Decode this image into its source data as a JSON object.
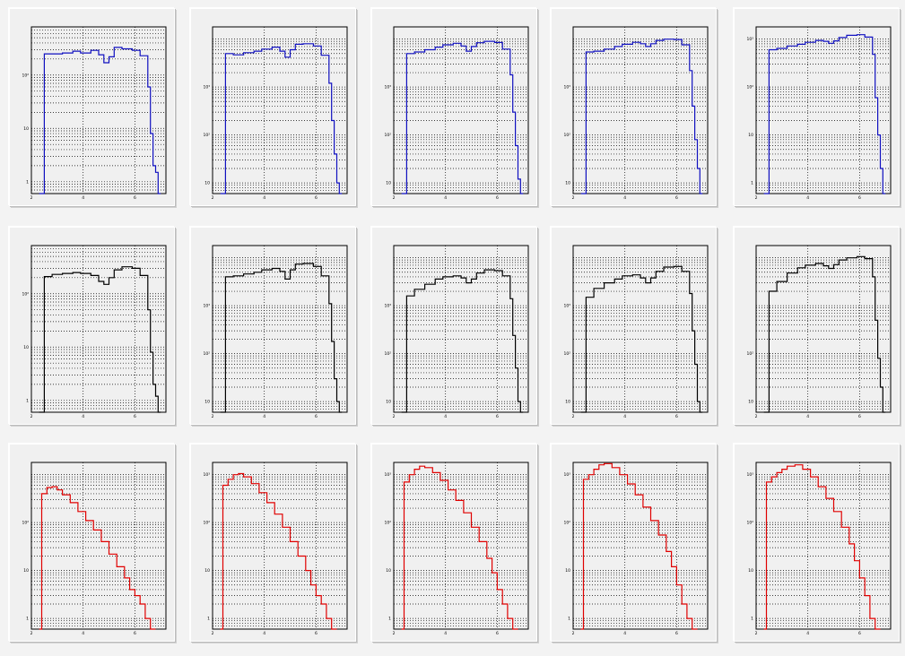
{
  "colors": {
    "blue": "#1010c0",
    "black": "#000000",
    "red": "#e00000"
  },
  "rows": [
    {
      "color_key": "blue",
      "x_ticks": [
        2,
        4,
        6
      ]
    },
    {
      "color_key": "black",
      "x_ticks": [
        2,
        4,
        6
      ]
    },
    {
      "color_key": "red",
      "x_ticks": [
        2,
        4,
        6
      ]
    }
  ],
  "chart_data": [
    {
      "type": "line",
      "style": "step",
      "color": "#1010c0",
      "xlim": [
        2,
        7.2
      ],
      "ylog": true,
      "ylim": [
        0.6,
        800
      ],
      "y_tick_labels": [
        "1",
        "10",
        "10²"
      ],
      "x": [
        2.3,
        2.5,
        2.8,
        3.2,
        3.6,
        3.9,
        4.3,
        4.6,
        4.8,
        5.0,
        5.2,
        5.5,
        5.9,
        6.2,
        6.5,
        6.6,
        6.7,
        6.8,
        6.9,
        7.0
      ],
      "y": [
        0.6,
        250,
        250,
        260,
        280,
        260,
        290,
        240,
        170,
        220,
        330,
        310,
        290,
        230,
        60,
        8,
        2,
        1.5,
        0.6,
        0.6
      ]
    },
    {
      "type": "line",
      "style": "step",
      "color": "#1010c0",
      "xlim": [
        2,
        7.2
      ],
      "ylog": true,
      "ylim": [
        0.6,
        1800
      ],
      "y_tick_labels": [
        "10",
        "10²",
        "10³"
      ],
      "x": [
        2.3,
        2.5,
        2.8,
        3.2,
        3.6,
        3.9,
        4.3,
        4.6,
        4.8,
        5.0,
        5.2,
        5.5,
        5.9,
        6.2,
        6.5,
        6.6,
        6.7,
        6.8,
        6.9,
        7.0
      ],
      "y": [
        0.6,
        500,
        470,
        520,
        560,
        620,
        680,
        560,
        420,
        600,
        780,
        800,
        720,
        460,
        120,
        20,
        4,
        1,
        0.6,
        0.6
      ]
    },
    {
      "type": "line",
      "style": "step",
      "color": "#1010c0",
      "xlim": [
        2,
        7.2
      ],
      "ylog": true,
      "ylim": [
        0.6,
        1800
      ],
      "y_tick_labels": [
        "10",
        "10²",
        "10³"
      ],
      "x": [
        2.3,
        2.5,
        2.8,
        3.2,
        3.6,
        3.9,
        4.3,
        4.6,
        4.8,
        5.0,
        5.2,
        5.5,
        5.9,
        6.2,
        6.5,
        6.6,
        6.7,
        6.8,
        6.9,
        7.0
      ],
      "y": [
        0.6,
        500,
        540,
        600,
        680,
        760,
        820,
        720,
        560,
        700,
        840,
        900,
        850,
        620,
        180,
        30,
        6,
        1.2,
        0.6,
        0.6
      ]
    },
    {
      "type": "line",
      "style": "step",
      "color": "#1010c0",
      "xlim": [
        2,
        7.2
      ],
      "ylog": true,
      "ylim": [
        0.6,
        1800
      ],
      "y_tick_labels": [
        "10",
        "10²",
        "10³"
      ],
      "x": [
        2.3,
        2.5,
        2.8,
        3.2,
        3.6,
        3.9,
        4.3,
        4.6,
        4.8,
        5.0,
        5.2,
        5.5,
        5.9,
        6.2,
        6.5,
        6.6,
        6.7,
        6.8,
        6.9,
        7.0
      ],
      "y": [
        0.6,
        540,
        560,
        620,
        700,
        780,
        860,
        800,
        700,
        800,
        940,
        1000,
        980,
        760,
        220,
        40,
        8,
        2,
        0.6,
        0.6
      ]
    },
    {
      "type": "line",
      "style": "step",
      "color": "#1010c0",
      "xlim": [
        2,
        7.2
      ],
      "ylog": true,
      "ylim": [
        0.6,
        1800
      ],
      "y_tick_labels": [
        "1",
        "10",
        "10²",
        "10³"
      ],
      "x": [
        2.3,
        2.5,
        2.8,
        3.2,
        3.6,
        3.9,
        4.3,
        4.6,
        4.8,
        5.0,
        5.2,
        5.5,
        5.9,
        6.2,
        6.5,
        6.6,
        6.7,
        6.8,
        6.9,
        7.0
      ],
      "y": [
        0.6,
        600,
        640,
        720,
        780,
        860,
        940,
        900,
        820,
        920,
        1080,
        1200,
        1240,
        1100,
        480,
        60,
        10,
        2,
        0.6,
        0.6
      ]
    },
    {
      "type": "line",
      "style": "step",
      "color": "#000000",
      "xlim": [
        2,
        7.2
      ],
      "ylog": true,
      "ylim": [
        0.6,
        800
      ],
      "y_tick_labels": [
        "1",
        "10",
        "10²"
      ],
      "x": [
        2.3,
        2.5,
        2.8,
        3.2,
        3.6,
        3.9,
        4.3,
        4.6,
        4.8,
        5.0,
        5.2,
        5.5,
        5.9,
        6.2,
        6.5,
        6.6,
        6.7,
        6.8,
        6.9,
        7.0
      ],
      "y": [
        0.6,
        210,
        230,
        240,
        250,
        240,
        220,
        170,
        150,
        200,
        280,
        320,
        300,
        220,
        50,
        8,
        2,
        1.2,
        0.6,
        0.6
      ]
    },
    {
      "type": "line",
      "style": "step",
      "color": "#000000",
      "xlim": [
        2,
        7.2
      ],
      "ylog": true,
      "ylim": [
        0.6,
        1800
      ],
      "y_tick_labels": [
        "10",
        "10²",
        "10³"
      ],
      "x": [
        2.3,
        2.5,
        2.8,
        3.2,
        3.6,
        3.9,
        4.3,
        4.6,
        4.8,
        5.0,
        5.2,
        5.5,
        5.9,
        6.2,
        6.5,
        6.6,
        6.7,
        6.8,
        6.9,
        7.0
      ],
      "y": [
        0.6,
        400,
        420,
        460,
        500,
        560,
        600,
        520,
        360,
        560,
        740,
        760,
        660,
        420,
        110,
        18,
        3,
        1,
        0.6,
        0.6
      ]
    },
    {
      "type": "line",
      "style": "step",
      "color": "#000000",
      "xlim": [
        2,
        7.2
      ],
      "ylog": true,
      "ylim": [
        0.6,
        1800
      ],
      "y_tick_labels": [
        "10",
        "10²",
        "10³"
      ],
      "x": [
        2.3,
        2.5,
        2.8,
        3.2,
        3.6,
        3.9,
        4.3,
        4.6,
        4.8,
        5.0,
        5.2,
        5.5,
        5.9,
        6.2,
        6.5,
        6.6,
        6.7,
        6.8,
        6.9,
        7.0
      ],
      "y": [
        0.6,
        160,
        220,
        280,
        360,
        400,
        420,
        380,
        300,
        360,
        480,
        560,
        540,
        420,
        140,
        24,
        5,
        1,
        0.6,
        0.6
      ]
    },
    {
      "type": "line",
      "style": "step",
      "color": "#000000",
      "xlim": [
        2,
        7.2
      ],
      "ylog": true,
      "ylim": [
        0.6,
        1800
      ],
      "y_tick_labels": [
        "10",
        "10²",
        "10³"
      ],
      "x": [
        2.3,
        2.5,
        2.8,
        3.2,
        3.6,
        3.9,
        4.3,
        4.6,
        4.8,
        5.0,
        5.2,
        5.5,
        5.9,
        6.2,
        6.5,
        6.6,
        6.7,
        6.8,
        6.9,
        7.0
      ],
      "y": [
        0.6,
        150,
        230,
        300,
        360,
        420,
        440,
        380,
        300,
        380,
        520,
        640,
        660,
        520,
        180,
        30,
        6,
        1,
        0.6,
        0.6
      ]
    },
    {
      "type": "line",
      "style": "step",
      "color": "#000000",
      "xlim": [
        2,
        7.2
      ],
      "ylog": true,
      "ylim": [
        0.6,
        1800
      ],
      "y_tick_labels": [
        "10",
        "10²"
      ],
      "x": [
        2.3,
        2.5,
        2.8,
        3.2,
        3.6,
        3.9,
        4.3,
        4.6,
        4.8,
        5.0,
        5.2,
        5.5,
        5.9,
        6.2,
        6.5,
        6.6,
        6.7,
        6.8,
        6.9,
        7.0
      ],
      "y": [
        0.6,
        200,
        320,
        480,
        620,
        700,
        760,
        680,
        600,
        720,
        900,
        1000,
        1060,
        960,
        400,
        50,
        8,
        2,
        0.6,
        0.6
      ]
    },
    {
      "type": "line",
      "style": "step",
      "color": "#e00000",
      "xlim": [
        2,
        7.2
      ],
      "ylog": true,
      "ylim": [
        0.6,
        1800
      ],
      "y_tick_labels": [
        "1",
        "10",
        "10²"
      ],
      "x": [
        2.3,
        2.4,
        2.6,
        2.8,
        3.0,
        3.2,
        3.5,
        3.8,
        4.1,
        4.4,
        4.7,
        5.0,
        5.3,
        5.6,
        5.8,
        6.0,
        6.2,
        6.4,
        6.6,
        6.8
      ],
      "y": [
        0.6,
        400,
        540,
        560,
        480,
        380,
        260,
        170,
        110,
        70,
        40,
        22,
        12,
        7,
        4,
        3,
        2,
        1,
        0.6,
        0.6
      ]
    },
    {
      "type": "line",
      "style": "step",
      "color": "#e00000",
      "xlim": [
        2,
        7.2
      ],
      "ylog": true,
      "ylim": [
        0.6,
        1800
      ],
      "y_tick_labels": [
        "1",
        "10",
        "10²",
        "10³"
      ],
      "x": [
        2.3,
        2.4,
        2.6,
        2.8,
        3.0,
        3.2,
        3.5,
        3.8,
        4.1,
        4.4,
        4.7,
        5.0,
        5.3,
        5.6,
        5.8,
        6.0,
        6.2,
        6.4,
        6.6,
        6.8
      ],
      "y": [
        0.6,
        600,
        800,
        1000,
        1050,
        900,
        650,
        420,
        260,
        150,
        80,
        40,
        20,
        10,
        5,
        3,
        2,
        1,
        0.6,
        0.6
      ]
    },
    {
      "type": "line",
      "style": "step",
      "color": "#e00000",
      "xlim": [
        2,
        7.2
      ],
      "ylog": true,
      "ylim": [
        0.6,
        1800
      ],
      "y_tick_labels": [
        "1",
        "10",
        "10²",
        "10³"
      ],
      "x": [
        2.3,
        2.4,
        2.6,
        2.8,
        3.0,
        3.2,
        3.5,
        3.8,
        4.1,
        4.4,
        4.7,
        5.0,
        5.3,
        5.6,
        5.8,
        6.0,
        6.2,
        6.4,
        6.6,
        6.8
      ],
      "y": [
        0.6,
        700,
        1000,
        1300,
        1500,
        1400,
        1100,
        760,
        480,
        290,
        160,
        80,
        40,
        18,
        9,
        4,
        2,
        1,
        0.6,
        0.6
      ]
    },
    {
      "type": "line",
      "style": "step",
      "color": "#e00000",
      "xlim": [
        2,
        7.2
      ],
      "ylog": true,
      "ylim": [
        0.6,
        1800
      ],
      "y_tick_labels": [
        "1",
        "10",
        "10²",
        "10³"
      ],
      "x": [
        2.3,
        2.4,
        2.6,
        2.8,
        3.0,
        3.2,
        3.5,
        3.8,
        4.1,
        4.4,
        4.7,
        5.0,
        5.3,
        5.6,
        5.8,
        6.0,
        6.2,
        6.4,
        6.6,
        6.8
      ],
      "y": [
        0.6,
        800,
        1000,
        1300,
        1600,
        1700,
        1400,
        1000,
        640,
        380,
        210,
        110,
        55,
        25,
        12,
        5,
        2,
        1,
        0.6,
        0.6
      ]
    },
    {
      "type": "line",
      "style": "step",
      "color": "#e00000",
      "xlim": [
        2,
        7.2
      ],
      "ylog": true,
      "ylim": [
        0.6,
        1800
      ],
      "y_tick_labels": [
        "1",
        "10",
        "10²",
        "10³"
      ],
      "x": [
        2.3,
        2.4,
        2.6,
        2.8,
        3.0,
        3.2,
        3.5,
        3.8,
        4.1,
        4.4,
        4.7,
        5.0,
        5.3,
        5.6,
        5.8,
        6.0,
        6.2,
        6.4,
        6.6,
        6.8
      ],
      "y": [
        0.6,
        700,
        900,
        1100,
        1300,
        1500,
        1600,
        1300,
        900,
        560,
        320,
        170,
        80,
        36,
        16,
        7,
        3,
        1,
        0.6,
        0.6
      ]
    }
  ]
}
